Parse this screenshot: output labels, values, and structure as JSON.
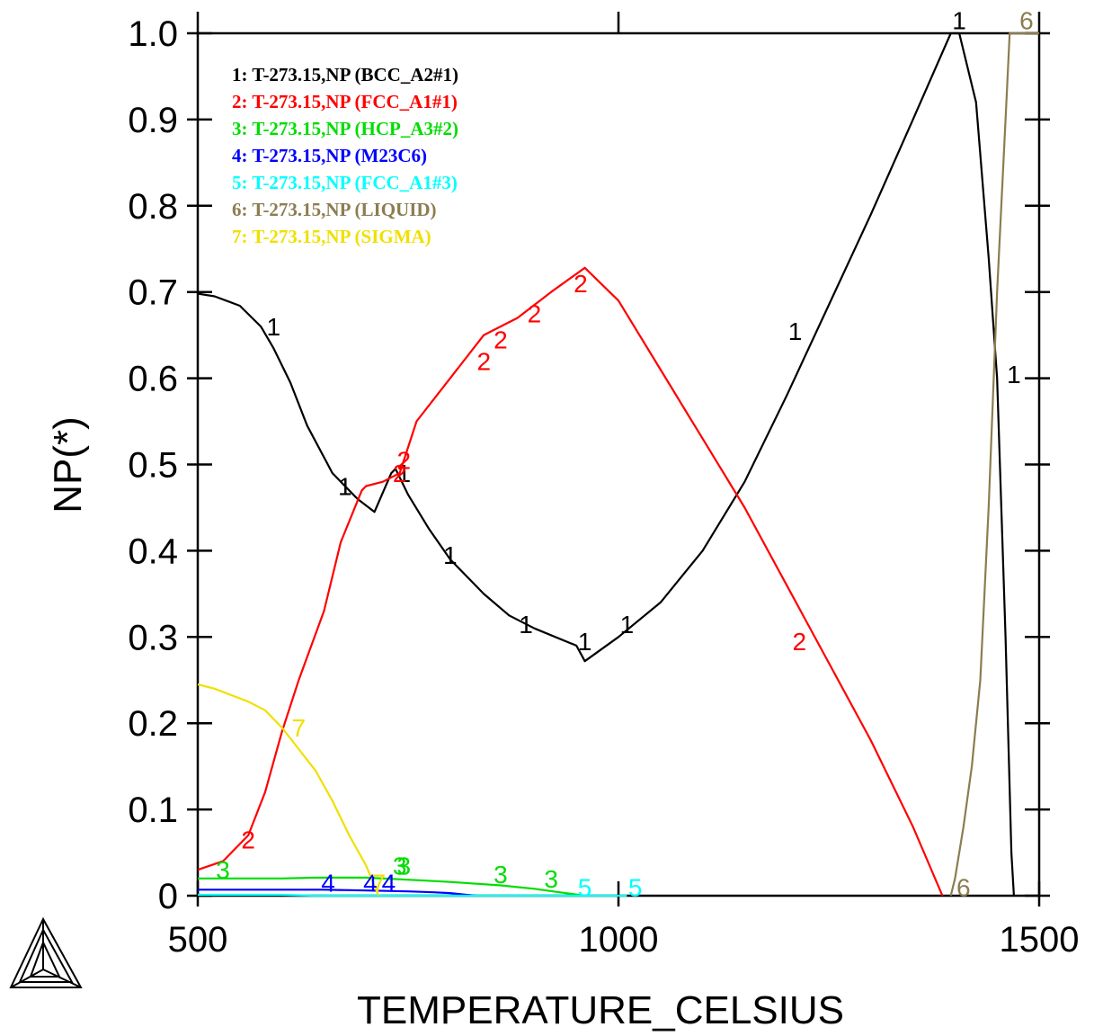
{
  "chart_data": {
    "type": "line",
    "xlabel": "TEMPERATURE_CELSIUS",
    "ylabel": "NP(*)",
    "xlim": [
      500,
      1500
    ],
    "ylim": [
      0,
      1.0
    ],
    "x_ticks": [
      500,
      1000,
      1500
    ],
    "y_ticks": [
      0,
      0.1,
      0.2,
      0.3,
      0.4,
      0.5,
      0.6,
      0.7,
      0.8,
      0.9,
      1.0
    ],
    "x_tick_labels": [
      "500",
      "1000",
      "1500"
    ],
    "y_tick_labels": [
      "0",
      "0.1",
      "0.2",
      "0.3",
      "0.4",
      "0.5",
      "0.6",
      "0.7",
      "0.8",
      "0.9",
      "1.0"
    ],
    "grid": false,
    "legend_position": "top-left",
    "series": [
      {
        "id": "1",
        "name": "1: T-273.15,NP (BCC_A2#1)",
        "color": "#000000",
        "points": [
          [
            500,
            0.698
          ],
          [
            520,
            0.695
          ],
          [
            550,
            0.684
          ],
          [
            575,
            0.66
          ],
          [
            590,
            0.635
          ],
          [
            610,
            0.595
          ],
          [
            630,
            0.545
          ],
          [
            660,
            0.49
          ],
          [
            690,
            0.46
          ],
          [
            710,
            0.445
          ],
          [
            730,
            0.49
          ],
          [
            735,
            0.495
          ],
          [
            750,
            0.465
          ],
          [
            775,
            0.425
          ],
          [
            800,
            0.39
          ],
          [
            840,
            0.35
          ],
          [
            870,
            0.325
          ],
          [
            900,
            0.31
          ],
          [
            950,
            0.29
          ],
          [
            960,
            0.272
          ],
          [
            1000,
            0.3
          ],
          [
            1050,
            0.34
          ],
          [
            1100,
            0.4
          ],
          [
            1150,
            0.48
          ],
          [
            1200,
            0.58
          ],
          [
            1250,
            0.685
          ],
          [
            1300,
            0.79
          ],
          [
            1350,
            0.9
          ],
          [
            1395,
            1.0
          ],
          [
            1405,
            1.0
          ],
          [
            1425,
            0.92
          ],
          [
            1440,
            0.74
          ],
          [
            1450,
            0.6
          ],
          [
            1460,
            0.3
          ],
          [
            1467,
            0.05
          ],
          [
            1470,
            0.0
          ]
        ],
        "labels": [
          [
            590,
            0.66
          ],
          [
            675,
            0.475
          ],
          [
            745,
            0.49
          ],
          [
            800,
            0.395
          ],
          [
            890,
            0.315
          ],
          [
            960,
            0.295
          ],
          [
            1010,
            0.315
          ],
          [
            1210,
            0.655
          ],
          [
            1405,
            1.015
          ],
          [
            1470,
            0.605
          ]
        ]
      },
      {
        "id": "2",
        "name": "2: T-273.15,NP (FCC_A1#1)",
        "color": "#ff0000",
        "points": [
          [
            500,
            0.03
          ],
          [
            530,
            0.04
          ],
          [
            560,
            0.07
          ],
          [
            580,
            0.12
          ],
          [
            600,
            0.19
          ],
          [
            620,
            0.25
          ],
          [
            650,
            0.33
          ],
          [
            670,
            0.41
          ],
          [
            695,
            0.47
          ],
          [
            700,
            0.475
          ],
          [
            720,
            0.48
          ],
          [
            740,
            0.49
          ],
          [
            760,
            0.55
          ],
          [
            800,
            0.6
          ],
          [
            840,
            0.65
          ],
          [
            880,
            0.67
          ],
          [
            920,
            0.7
          ],
          [
            960,
            0.728
          ],
          [
            1000,
            0.69
          ],
          [
            1050,
            0.61
          ],
          [
            1100,
            0.53
          ],
          [
            1150,
            0.45
          ],
          [
            1200,
            0.36
          ],
          [
            1250,
            0.27
          ],
          [
            1300,
            0.18
          ],
          [
            1350,
            0.08
          ],
          [
            1385,
            0.0
          ]
        ],
        "labels": [
          [
            560,
            0.065
          ],
          [
            740,
            0.49
          ],
          [
            745,
            0.505
          ],
          [
            840,
            0.62
          ],
          [
            860,
            0.645
          ],
          [
            900,
            0.675
          ],
          [
            955,
            0.71
          ],
          [
            1215,
            0.295
          ]
        ]
      },
      {
        "id": "3",
        "name": "3: T-273.15,NP (HCP_A3#2)",
        "color": "#00dd00",
        "points": [
          [
            500,
            0.02
          ],
          [
            550,
            0.02
          ],
          [
            600,
            0.02
          ],
          [
            640,
            0.021
          ],
          [
            700,
            0.021
          ],
          [
            760,
            0.018
          ],
          [
            800,
            0.016
          ],
          [
            860,
            0.012
          ],
          [
            900,
            0.008
          ],
          [
            930,
            0.004
          ],
          [
            960,
            0.0
          ]
        ],
        "labels": [
          [
            530,
            0.03
          ],
          [
            740,
            0.035
          ],
          [
            745,
            0.035
          ],
          [
            860,
            0.025
          ],
          [
            920,
            0.02
          ]
        ]
      },
      {
        "id": "4",
        "name": "4: T-273.15,NP (M23C6)",
        "color": "#0000ff",
        "points": [
          [
            500,
            0.007
          ],
          [
            550,
            0.007
          ],
          [
            600,
            0.007
          ],
          [
            650,
            0.007
          ],
          [
            700,
            0.006
          ],
          [
            750,
            0.005
          ],
          [
            780,
            0.004
          ],
          [
            800,
            0.003
          ],
          [
            830,
            0.0
          ]
        ],
        "labels": [
          [
            655,
            0.015
          ],
          [
            705,
            0.015
          ],
          [
            727,
            0.015
          ]
        ]
      },
      {
        "id": "5",
        "name": "5: T-273.15,NP (FCC_A1#3)",
        "color": "#00ffff",
        "points": [
          [
            500,
            0.001
          ],
          [
            550,
            0.001
          ],
          [
            600,
            0.001
          ],
          [
            640,
            0.0
          ],
          [
            900,
            0.0
          ],
          [
            1000,
            0.0
          ],
          [
            1010,
            0.0
          ]
        ],
        "labels": [
          [
            960,
            0.01
          ],
          [
            1020,
            0.01
          ]
        ]
      },
      {
        "id": "6",
        "name": "6: T-273.15,NP (LIQUID)",
        "color": "#8b7d50",
        "points": [
          [
            1395,
            0.0
          ],
          [
            1400,
            0.02
          ],
          [
            1410,
            0.08
          ],
          [
            1420,
            0.15
          ],
          [
            1430,
            0.25
          ],
          [
            1440,
            0.45
          ],
          [
            1450,
            0.7
          ],
          [
            1460,
            0.9
          ],
          [
            1465,
            1.0
          ],
          [
            1500,
            1.0
          ]
        ],
        "labels": [
          [
            1410,
            0.01
          ],
          [
            1485,
            1.015
          ]
        ]
      },
      {
        "id": "7",
        "name": "7: T-273.15,NP (SIGMA)",
        "color": "#f0e000",
        "points": [
          [
            500,
            0.245
          ],
          [
            520,
            0.24
          ],
          [
            560,
            0.225
          ],
          [
            580,
            0.215
          ],
          [
            600,
            0.195
          ],
          [
            620,
            0.17
          ],
          [
            640,
            0.145
          ],
          [
            660,
            0.11
          ],
          [
            680,
            0.07
          ],
          [
            700,
            0.035
          ],
          [
            715,
            0.0
          ]
        ],
        "labels": [
          [
            620,
            0.195
          ],
          [
            715,
            0.015
          ]
        ]
      }
    ]
  }
}
